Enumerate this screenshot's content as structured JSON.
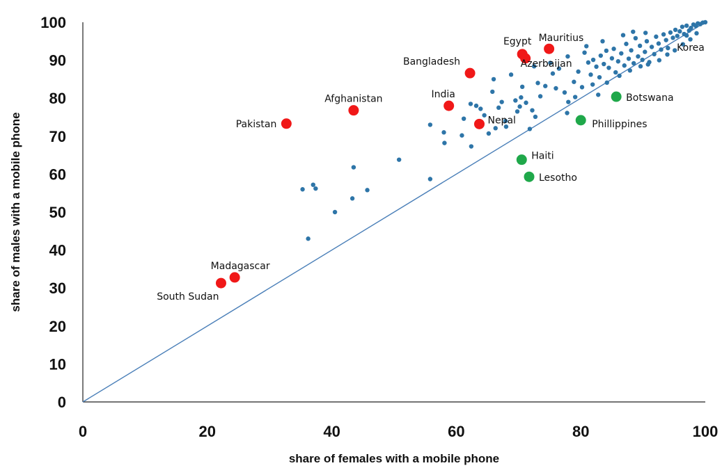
{
  "chart_data": {
    "type": "scatter",
    "xlabel": "share of females with a mobile phone",
    "ylabel": "share of males with a mobile phone",
    "xlim": [
      0,
      100
    ],
    "ylim": [
      0,
      100
    ],
    "xticks": [
      0,
      20,
      40,
      60,
      80,
      100
    ],
    "yticks": [
      0,
      10,
      20,
      30,
      40,
      50,
      60,
      70,
      80,
      90,
      100
    ],
    "grid": false,
    "reference_line": {
      "from": [
        0,
        0
      ],
      "to": [
        100,
        100
      ],
      "color": "#4a7fb8"
    },
    "colors": {
      "other": "#2e75a8",
      "male_advantage": "#f01818",
      "female_advantage": "#1fa84a"
    },
    "highlighted": [
      {
        "label": "Pakistan",
        "x": 32.7,
        "y": 73.3,
        "group": "male_advantage"
      },
      {
        "label": "Afghanistan",
        "x": 43.5,
        "y": 76.8,
        "group": "male_advantage"
      },
      {
        "label": "India",
        "x": 58.8,
        "y": 78.0,
        "group": "male_advantage"
      },
      {
        "label": "Bangladesh",
        "x": 62.2,
        "y": 86.6,
        "group": "male_advantage"
      },
      {
        "label": "Nepal",
        "x": 63.7,
        "y": 73.2,
        "group": "male_advantage"
      },
      {
        "label": "Egypt",
        "x": 70.6,
        "y": 91.6,
        "group": "male_advantage"
      },
      {
        "label": "Azerbaijan",
        "x": 71.1,
        "y": 90.5,
        "group": "male_advantage"
      },
      {
        "label": "Mauritius",
        "x": 74.9,
        "y": 93.0,
        "group": "male_advantage"
      },
      {
        "label": "Madagascar",
        "x": 24.4,
        "y": 32.8,
        "group": "male_advantage"
      },
      {
        "label": "South Sudan",
        "x": 22.2,
        "y": 31.3,
        "group": "male_advantage"
      },
      {
        "label": "Botswana",
        "x": 85.7,
        "y": 80.4,
        "group": "female_advantage"
      },
      {
        "label": "Phillippines",
        "x": 80.0,
        "y": 74.2,
        "group": "female_advantage"
      },
      {
        "label": "Haiti",
        "x": 70.5,
        "y": 63.8,
        "group": "female_advantage"
      },
      {
        "label": "Lesotho",
        "x": 71.7,
        "y": 59.3,
        "group": "female_advantage"
      },
      {
        "label": "Korea",
        "x": 97.0,
        "y": 96.5,
        "group": "other"
      }
    ],
    "others": [
      [
        35.3,
        56.0
      ],
      [
        36.2,
        43.0
      ],
      [
        37.0,
        57.2
      ],
      [
        37.4,
        56.2
      ],
      [
        40.5,
        50.0
      ],
      [
        43.3,
        53.6
      ],
      [
        43.5,
        61.8
      ],
      [
        45.7,
        55.8
      ],
      [
        50.8,
        63.8
      ],
      [
        55.8,
        58.7
      ],
      [
        55.8,
        73.0
      ],
      [
        58.0,
        71.0
      ],
      [
        58.1,
        68.2
      ],
      [
        62.3,
        78.5
      ],
      [
        62.4,
        67.3
      ],
      [
        63.2,
        78.0
      ],
      [
        64.5,
        75.5
      ],
      [
        65.2,
        70.7
      ],
      [
        65.8,
        81.7
      ],
      [
        66.8,
        77.5
      ],
      [
        67.3,
        79.0
      ],
      [
        68.0,
        72.5
      ],
      [
        69.5,
        79.4
      ],
      [
        69.8,
        76.5
      ],
      [
        70.2,
        77.8
      ],
      [
        70.4,
        80.2
      ],
      [
        70.6,
        83.0
      ],
      [
        71.2,
        78.8
      ],
      [
        72.2,
        76.8
      ],
      [
        73.1,
        84.0
      ],
      [
        73.5,
        80.5
      ],
      [
        74.3,
        83.2
      ],
      [
        75.1,
        89.3
      ],
      [
        75.5,
        86.5
      ],
      [
        76.5,
        87.8
      ],
      [
        77.4,
        81.5
      ],
      [
        78.0,
        79.0
      ],
      [
        78.9,
        84.3
      ],
      [
        79.6,
        87.0
      ],
      [
        80.6,
        92.0
      ],
      [
        81.2,
        89.4
      ],
      [
        81.6,
        86.2
      ],
      [
        82.0,
        90.1
      ],
      [
        82.5,
        88.3
      ],
      [
        83.0,
        85.5
      ],
      [
        83.2,
        91.2
      ],
      [
        83.7,
        89.0
      ],
      [
        84.1,
        92.5
      ],
      [
        84.5,
        88.0
      ],
      [
        85.0,
        90.5
      ],
      [
        85.3,
        93.0
      ],
      [
        85.6,
        86.8
      ],
      [
        86.0,
        89.7
      ],
      [
        86.5,
        91.8
      ],
      [
        87.0,
        88.6
      ],
      [
        87.3,
        94.3
      ],
      [
        87.7,
        90.4
      ],
      [
        88.1,
        92.6
      ],
      [
        88.5,
        89.2
      ],
      [
        88.8,
        95.8
      ],
      [
        89.2,
        91.0
      ],
      [
        89.5,
        93.8
      ],
      [
        89.9,
        90.1
      ],
      [
        90.3,
        92.2
      ],
      [
        90.6,
        95.0
      ],
      [
        91.0,
        89.5
      ],
      [
        91.4,
        93.5
      ],
      [
        91.8,
        91.6
      ],
      [
        92.1,
        96.2
      ],
      [
        92.5,
        94.4
      ],
      [
        92.9,
        92.8
      ],
      [
        93.3,
        96.8
      ],
      [
        93.7,
        95.3
      ],
      [
        94.0,
        93.2
      ],
      [
        94.4,
        97.3
      ],
      [
        94.8,
        95.9
      ],
      [
        95.2,
        98.0
      ],
      [
        95.5,
        96.4
      ],
      [
        95.9,
        97.6
      ],
      [
        96.3,
        98.8
      ],
      [
        96.6,
        96.9
      ],
      [
        97.0,
        99.1
      ],
      [
        97.4,
        97.8
      ],
      [
        97.7,
        98.5
      ],
      [
        98.1,
        99.4
      ],
      [
        98.5,
        99.0
      ],
      [
        98.8,
        99.7
      ],
      [
        99.2,
        99.5
      ],
      [
        99.6,
        99.9
      ],
      [
        100.0,
        100.0
      ],
      [
        60.9,
        70.2
      ],
      [
        61.2,
        74.6
      ],
      [
        63.9,
        77.2
      ],
      [
        66.3,
        72.1
      ],
      [
        67.9,
        74.0
      ],
      [
        71.8,
        71.9
      ],
      [
        72.7,
        75.1
      ],
      [
        76.0,
        82.6
      ],
      [
        77.8,
        76.1
      ],
      [
        79.1,
        80.3
      ],
      [
        80.2,
        82.9
      ],
      [
        81.9,
        83.6
      ],
      [
        82.8,
        80.9
      ],
      [
        84.2,
        84.1
      ],
      [
        86.2,
        85.9
      ],
      [
        87.9,
        87.3
      ],
      [
        89.6,
        88.4
      ],
      [
        90.8,
        88.9
      ],
      [
        92.6,
        90.0
      ],
      [
        93.9,
        91.5
      ],
      [
        95.1,
        92.6
      ],
      [
        96.4,
        94.2
      ],
      [
        97.6,
        95.5
      ],
      [
        98.6,
        97.1
      ],
      [
        66.0,
        85.0
      ],
      [
        68.8,
        86.2
      ],
      [
        72.5,
        88.4
      ],
      [
        77.9,
        91.0
      ],
      [
        80.9,
        93.7
      ],
      [
        83.5,
        95.0
      ],
      [
        86.8,
        96.6
      ],
      [
        88.4,
        97.5
      ],
      [
        90.4,
        97.2
      ]
    ]
  }
}
